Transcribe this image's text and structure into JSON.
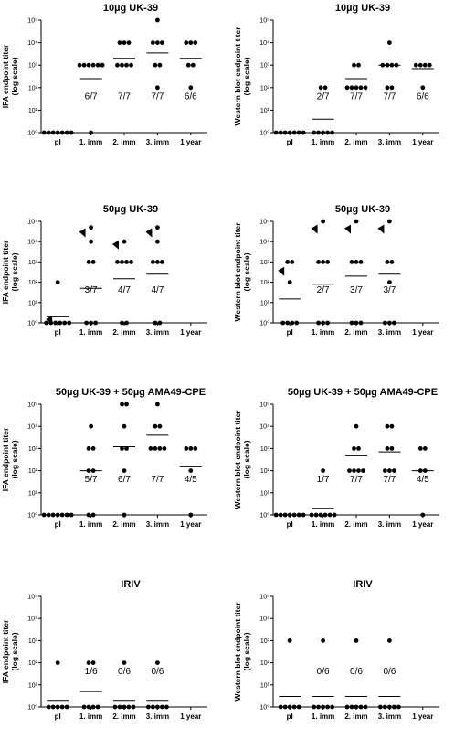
{
  "chart_data": [
    {
      "type": "scatter",
      "title": "10µg UK-39",
      "ylabel": "IFA endpoint titer",
      "ylabel2": "(log scale)",
      "categories": [
        "pI",
        "1. imm",
        "2. imm",
        "3. imm",
        "1 year"
      ],
      "yscale": "log",
      "ylim": [
        1,
        100000
      ],
      "yticks": [
        "10⁰",
        "10¹",
        "10²",
        "10³",
        "10⁴",
        "10⁵"
      ],
      "points": [
        [
          1,
          1,
          1,
          1,
          1,
          1,
          1
        ],
        [
          1000,
          1000,
          1000,
          1000,
          1000,
          1000,
          1
        ],
        [
          10000,
          10000,
          10000,
          1000,
          1000,
          1000,
          1000
        ],
        [
          100000,
          10000,
          10000,
          10000,
          1000,
          1000,
          100
        ],
        [
          10000,
          10000,
          10000,
          1000,
          1000,
          100
        ]
      ],
      "medians": [
        1,
        250,
        2000,
        3500,
        2000
      ],
      "fractions": [
        "",
        "6/7",
        "7/7",
        "7/7",
        "6/6"
      ],
      "arrows": []
    },
    {
      "type": "scatter",
      "title": "10µg UK-39",
      "ylabel": "Western blot endpoint titer",
      "ylabel2": "(log scale)",
      "categories": [
        "pI",
        "1. imm",
        "2. imm",
        "3. imm",
        "1 year"
      ],
      "yscale": "log",
      "ylim": [
        1,
        100000
      ],
      "yticks": [
        "10⁰",
        "10¹",
        "10²",
        "10³",
        "10⁴",
        "10⁵"
      ],
      "points": [
        [
          1,
          1,
          1,
          1,
          1,
          1,
          1
        ],
        [
          100,
          100,
          1,
          1,
          1,
          1,
          1
        ],
        [
          1000,
          1000,
          100,
          100,
          100,
          100,
          100
        ],
        [
          10000,
          1000,
          1000,
          1000,
          1000,
          100,
          100
        ],
        [
          1000,
          1000,
          1000,
          1000,
          100
        ]
      ],
      "medians": [
        1,
        4,
        250,
        1000,
        700
      ],
      "fractions": [
        "",
        "2/7",
        "7/7",
        "7/7",
        "6/6"
      ],
      "arrows": []
    },
    {
      "type": "scatter",
      "title": "50µg UK-39",
      "ylabel": "IFA endpoint titer",
      "ylabel2": "(log scale)",
      "categories": [
        "pI",
        "1. imm",
        "2. imm",
        "3. imm",
        "1 year"
      ],
      "yscale": "log",
      "ylim": [
        1,
        100000
      ],
      "yticks": [
        "10⁰",
        "10¹",
        "10²",
        "10³",
        "10⁴",
        "10⁵"
      ],
      "points": [
        [
          100,
          1,
          1,
          1,
          1,
          1,
          1
        ],
        [
          50000,
          10000,
          1000,
          1000,
          1,
          1,
          1
        ],
        [
          10000,
          1000,
          1000,
          1000,
          1000,
          1,
          1
        ],
        [
          50000,
          10000,
          1000,
          1000,
          1000,
          1,
          1
        ],
        []
      ],
      "medians": [
        2,
        50,
        150,
        250,
        null
      ],
      "fractions": [
        "",
        "3/7",
        "4/7",
        "4/7",
        ""
      ],
      "arrows": [
        [
          0,
          1
        ],
        [
          1,
          20000
        ],
        [
          2,
          5000
        ],
        [
          3,
          20000
        ]
      ]
    },
    {
      "type": "scatter",
      "title": "50µg UK-39",
      "ylabel": "Western blot endpoint titer",
      "ylabel2": "(log scale)",
      "categories": [
        "pI",
        "1. imm",
        "2. imm",
        "3. imm",
        "1 year"
      ],
      "yscale": "log",
      "ylim": [
        1,
        100000
      ],
      "yticks": [
        "10⁰",
        "10¹",
        "10²",
        "10³",
        "10⁴",
        "10⁵"
      ],
      "points": [
        [
          1000,
          1000,
          100,
          1,
          1,
          1,
          1
        ],
        [
          100000,
          1000,
          1000,
          1000,
          1,
          1,
          1
        ],
        [
          100000,
          1000,
          1000,
          1000,
          1,
          1,
          1
        ],
        [
          100000,
          1000,
          1000,
          100,
          1,
          1,
          1
        ],
        []
      ],
      "medians": [
        15,
        80,
        200,
        250,
        null
      ],
      "fractions": [
        "",
        "2/7",
        "3/7",
        "3/7",
        ""
      ],
      "arrows": [
        [
          0,
          250
        ],
        [
          1,
          30000
        ],
        [
          2,
          30000
        ],
        [
          3,
          30000
        ]
      ]
    },
    {
      "type": "scatter",
      "title": "50µg UK-39 + 50µg AMA49-CPE",
      "ylabel": "IFA endpoint titer",
      "ylabel2": "(log scale)",
      "categories": [
        "pI",
        "1. imm",
        "2. imm",
        "3. imm",
        "1 year"
      ],
      "yscale": "log",
      "ylim": [
        1,
        100000
      ],
      "yticks": [
        "10⁰",
        "10¹",
        "10²",
        "10³",
        "10⁴",
        "10⁵"
      ],
      "points": [
        [
          1,
          1,
          1,
          1,
          1,
          1,
          1
        ],
        [
          10000,
          1000,
          1000,
          100,
          100,
          1,
          1
        ],
        [
          100000,
          100000,
          10000,
          1000,
          1000,
          100,
          1
        ],
        [
          100000,
          10000,
          10000,
          1000,
          1000,
          1000,
          1000
        ],
        [
          1000,
          1000,
          1000,
          100,
          1
        ]
      ],
      "medians": [
        1,
        100,
        1200,
        4000,
        150
      ],
      "fractions": [
        "",
        "5/7",
        "6/7",
        "7/7",
        "4/5"
      ],
      "arrows": []
    },
    {
      "type": "scatter",
      "title": "50µg UK-39 + 50µg AMA49-CPE",
      "ylabel": "Western blot endpoint titer",
      "ylabel2": "(log scale)",
      "categories": [
        "pI",
        "1. imm",
        "2. imm",
        "3. imm",
        "1 year"
      ],
      "yscale": "log",
      "ylim": [
        1,
        100000
      ],
      "yticks": [
        "10⁰",
        "10¹",
        "10²",
        "10³",
        "10⁴",
        "10⁵"
      ],
      "points": [
        [
          1,
          1,
          1,
          1,
          1,
          1,
          1
        ],
        [
          100,
          1,
          1,
          1,
          1,
          1,
          1
        ],
        [
          10000,
          1000,
          1000,
          100,
          100,
          100,
          100
        ],
        [
          10000,
          10000,
          1000,
          1000,
          100,
          100,
          100
        ],
        [
          1000,
          1000,
          100,
          100,
          1
        ]
      ],
      "medians": [
        1,
        2,
        500,
        700,
        100
      ],
      "fractions": [
        "",
        "1/7",
        "7/7",
        "7/7",
        "4/5"
      ],
      "arrows": []
    },
    {
      "type": "scatter",
      "title": "IRIV",
      "ylabel": "IFA endpoint titer",
      "ylabel2": "(log scale)",
      "categories": [
        "pI",
        "1. imm",
        "2. imm",
        "3. imm",
        "1 year"
      ],
      "yscale": "log",
      "ylim": [
        1,
        100000
      ],
      "yticks": [
        "10⁰",
        "10¹",
        "10²",
        "10³",
        "10⁴",
        "10⁵"
      ],
      "points": [
        [
          100,
          1,
          1,
          1,
          1,
          1
        ],
        [
          100,
          100,
          1,
          1,
          1,
          1
        ],
        [
          100,
          1,
          1,
          1,
          1,
          1
        ],
        [
          100,
          1,
          1,
          1,
          1,
          1
        ],
        []
      ],
      "medians": [
        2,
        5,
        2,
        2,
        null
      ],
      "fractions": [
        "",
        "1/6",
        "0/6",
        "0/6",
        ""
      ],
      "arrows": []
    },
    {
      "type": "scatter",
      "title": "IRIV",
      "ylabel": "Western blot endpoint titer",
      "ylabel2": "(log scale)",
      "categories": [
        "pI",
        "1. imm",
        "2. imm",
        "3. imm",
        "1 year"
      ],
      "yscale": "log",
      "ylim": [
        1,
        100000
      ],
      "yticks": [
        "10⁰",
        "10¹",
        "10²",
        "10³",
        "10⁴",
        "10⁵"
      ],
      "points": [
        [
          1000,
          1,
          1,
          1,
          1,
          1
        ],
        [
          1000,
          1,
          1,
          1,
          1,
          1
        ],
        [
          1000,
          1,
          1,
          1,
          1,
          1
        ],
        [
          1000,
          1,
          1,
          1,
          1,
          1
        ],
        []
      ],
      "medians": [
        3,
        3,
        3,
        3,
        null
      ],
      "fractions": [
        "",
        "0/6",
        "0/6",
        "0/6",
        ""
      ],
      "arrows": []
    }
  ]
}
